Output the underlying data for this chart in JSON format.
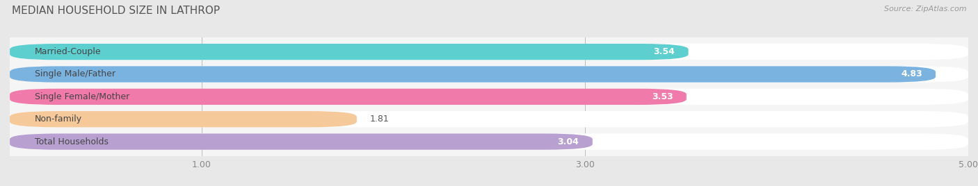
{
  "title": "MEDIAN HOUSEHOLD SIZE IN LATHROP",
  "source": "Source: ZipAtlas.com",
  "categories": [
    "Married-Couple",
    "Single Male/Father",
    "Single Female/Mother",
    "Non-family",
    "Total Households"
  ],
  "values": [
    3.54,
    4.83,
    3.53,
    1.81,
    3.04
  ],
  "bar_colors": [
    "#5ecfcf",
    "#7ab3e0",
    "#f07aaa",
    "#f5c99a",
    "#b8a0d0"
  ],
  "bar_bg_colors": [
    "#eeeeee",
    "#eeeeee",
    "#eeeeee",
    "#eeeeee",
    "#eeeeee"
  ],
  "xmin": 0.0,
  "xmax": 5.0,
  "xticks": [
    1.0,
    3.0,
    5.0
  ],
  "xtick_labels": [
    "1.00",
    "3.00",
    "5.00"
  ],
  "fig_bg_color": "#e8e8e8",
  "plot_bg_color": "#f5f5f5",
  "title_fontsize": 11,
  "source_fontsize": 8,
  "label_fontsize": 9,
  "value_fontsize": 9,
  "tick_fontsize": 9,
  "bar_height": 0.72,
  "rounding_size": 0.25
}
